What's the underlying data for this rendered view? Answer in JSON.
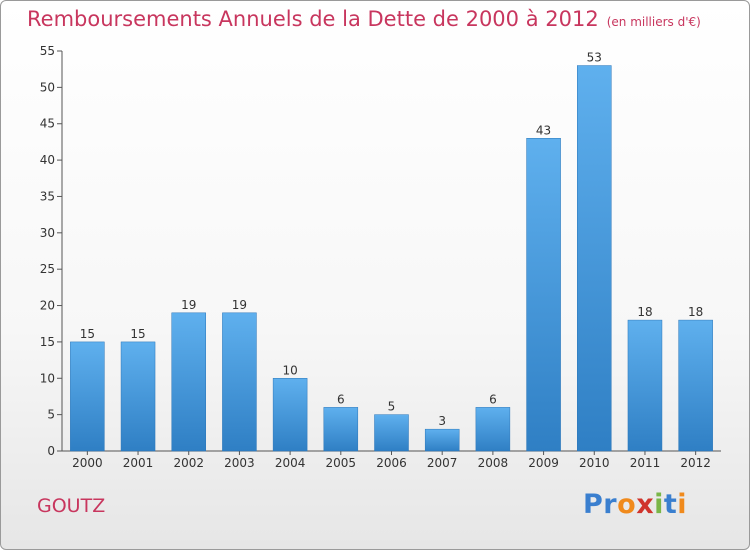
{
  "title": "Remboursements Annuels de la Dette de 2000 à 2012",
  "unit": "(en milliers d'€)",
  "commune": "GOUTZ",
  "logo": {
    "text": "Proxiti",
    "colors": [
      "#3a7fcf",
      "#3a7fcf",
      "#f08a1c",
      "#d0342c",
      "#7ab648",
      "#3a7fcf",
      "#f08a1c"
    ]
  },
  "chart_data": {
    "type": "bar",
    "title": "Remboursements Annuels de la Dette de 2000 à 2012",
    "ylabel": "",
    "xlabel": "",
    "categories": [
      "2000",
      "2001",
      "2002",
      "2003",
      "2004",
      "2005",
      "2006",
      "2007",
      "2008",
      "2009",
      "2010",
      "2011",
      "2012"
    ],
    "values": [
      15,
      15,
      19,
      19,
      10,
      6,
      5,
      3,
      6,
      43,
      53,
      18,
      18
    ],
    "ylim": [
      0,
      55
    ],
    "yticks": [
      0,
      5,
      10,
      15,
      20,
      25,
      30,
      35,
      40,
      45,
      50,
      55
    ],
    "bar_color": "#4d9de0",
    "grid": false,
    "legend": "none"
  }
}
